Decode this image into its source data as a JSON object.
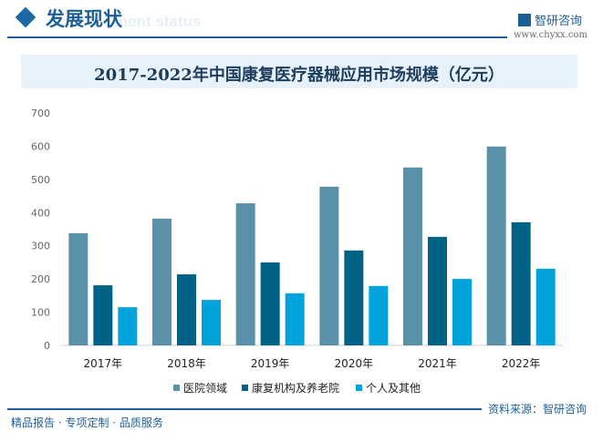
{
  "header": {
    "title": "发展现状",
    "watermark_text": "ment status",
    "logo_text": "智研咨询",
    "site": "www.chyxx.com"
  },
  "footer": {
    "tagline": "精品报告 · 专项定制 · 品质服务",
    "source": "资料来源：智研咨询"
  },
  "colors": {
    "brand": "#1c5f96"
  },
  "chart_data": {
    "type": "bar",
    "title": "2017-2022年中国康复医疗器械应用市场规模（亿元）",
    "categories": [
      "2017年",
      "2018年",
      "2019年",
      "2020年",
      "2021年",
      "2022年"
    ],
    "series": [
      {
        "name": "医院领域",
        "color": "#5b91a8",
        "values": [
          338,
          382,
          428,
          478,
          536,
          599
        ]
      },
      {
        "name": "康复机构及养老院",
        "color": "#006386",
        "values": [
          181,
          214,
          250,
          286,
          327,
          371
        ]
      },
      {
        "name": "个人及其他",
        "color": "#00a3dc",
        "values": [
          115,
          137,
          157,
          179,
          200,
          231
        ]
      }
    ],
    "ylim": [
      0,
      700
    ],
    "yticks": [
      "0",
      "100",
      "200",
      "300",
      "400",
      "500",
      "600",
      "700"
    ],
    "grid": false,
    "legend": "bottom"
  }
}
